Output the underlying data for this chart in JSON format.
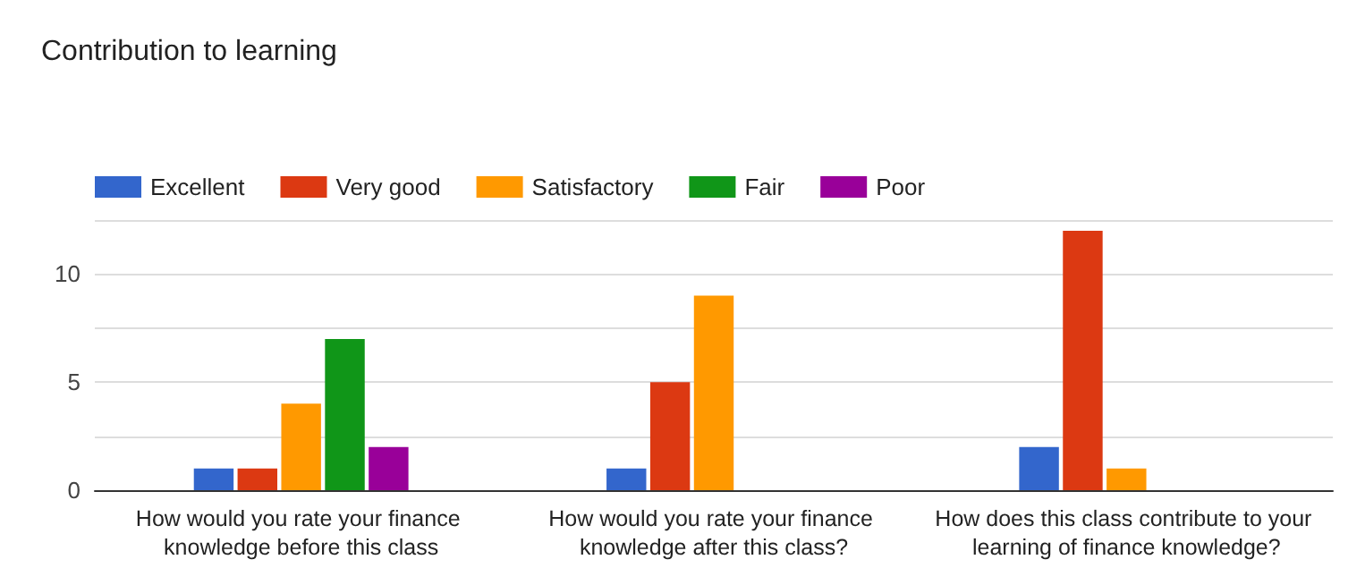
{
  "chart_data": {
    "type": "bar",
    "title": "Contribution to learning",
    "categories": [
      "How would you rate your finance knowledge before this class",
      "How would you rate your finance knowledge after this class?",
      "How does this class contribute to your learning of finance knowledge?"
    ],
    "series": [
      {
        "name": "Excellent",
        "color": "#3366cc",
        "values": [
          1,
          1,
          2
        ]
      },
      {
        "name": "Very good",
        "color": "#dc3912",
        "values": [
          1,
          5,
          12
        ]
      },
      {
        "name": "Satisfactory",
        "color": "#ff9900",
        "values": [
          4,
          9,
          1
        ]
      },
      {
        "name": "Fair",
        "color": "#109618",
        "values": [
          7,
          0,
          0
        ]
      },
      {
        "name": "Poor",
        "color": "#990099",
        "values": [
          2,
          0,
          0
        ]
      }
    ],
    "ylim": [
      0,
      12.5
    ],
    "yticks": [
      0,
      {
        "value": 2.5,
        "label": null
      },
      5,
      {
        "value": 7.5,
        "label": null
      },
      10,
      {
        "value": 12.5,
        "label": null
      }
    ],
    "grid": "y",
    "legend": "top left"
  }
}
